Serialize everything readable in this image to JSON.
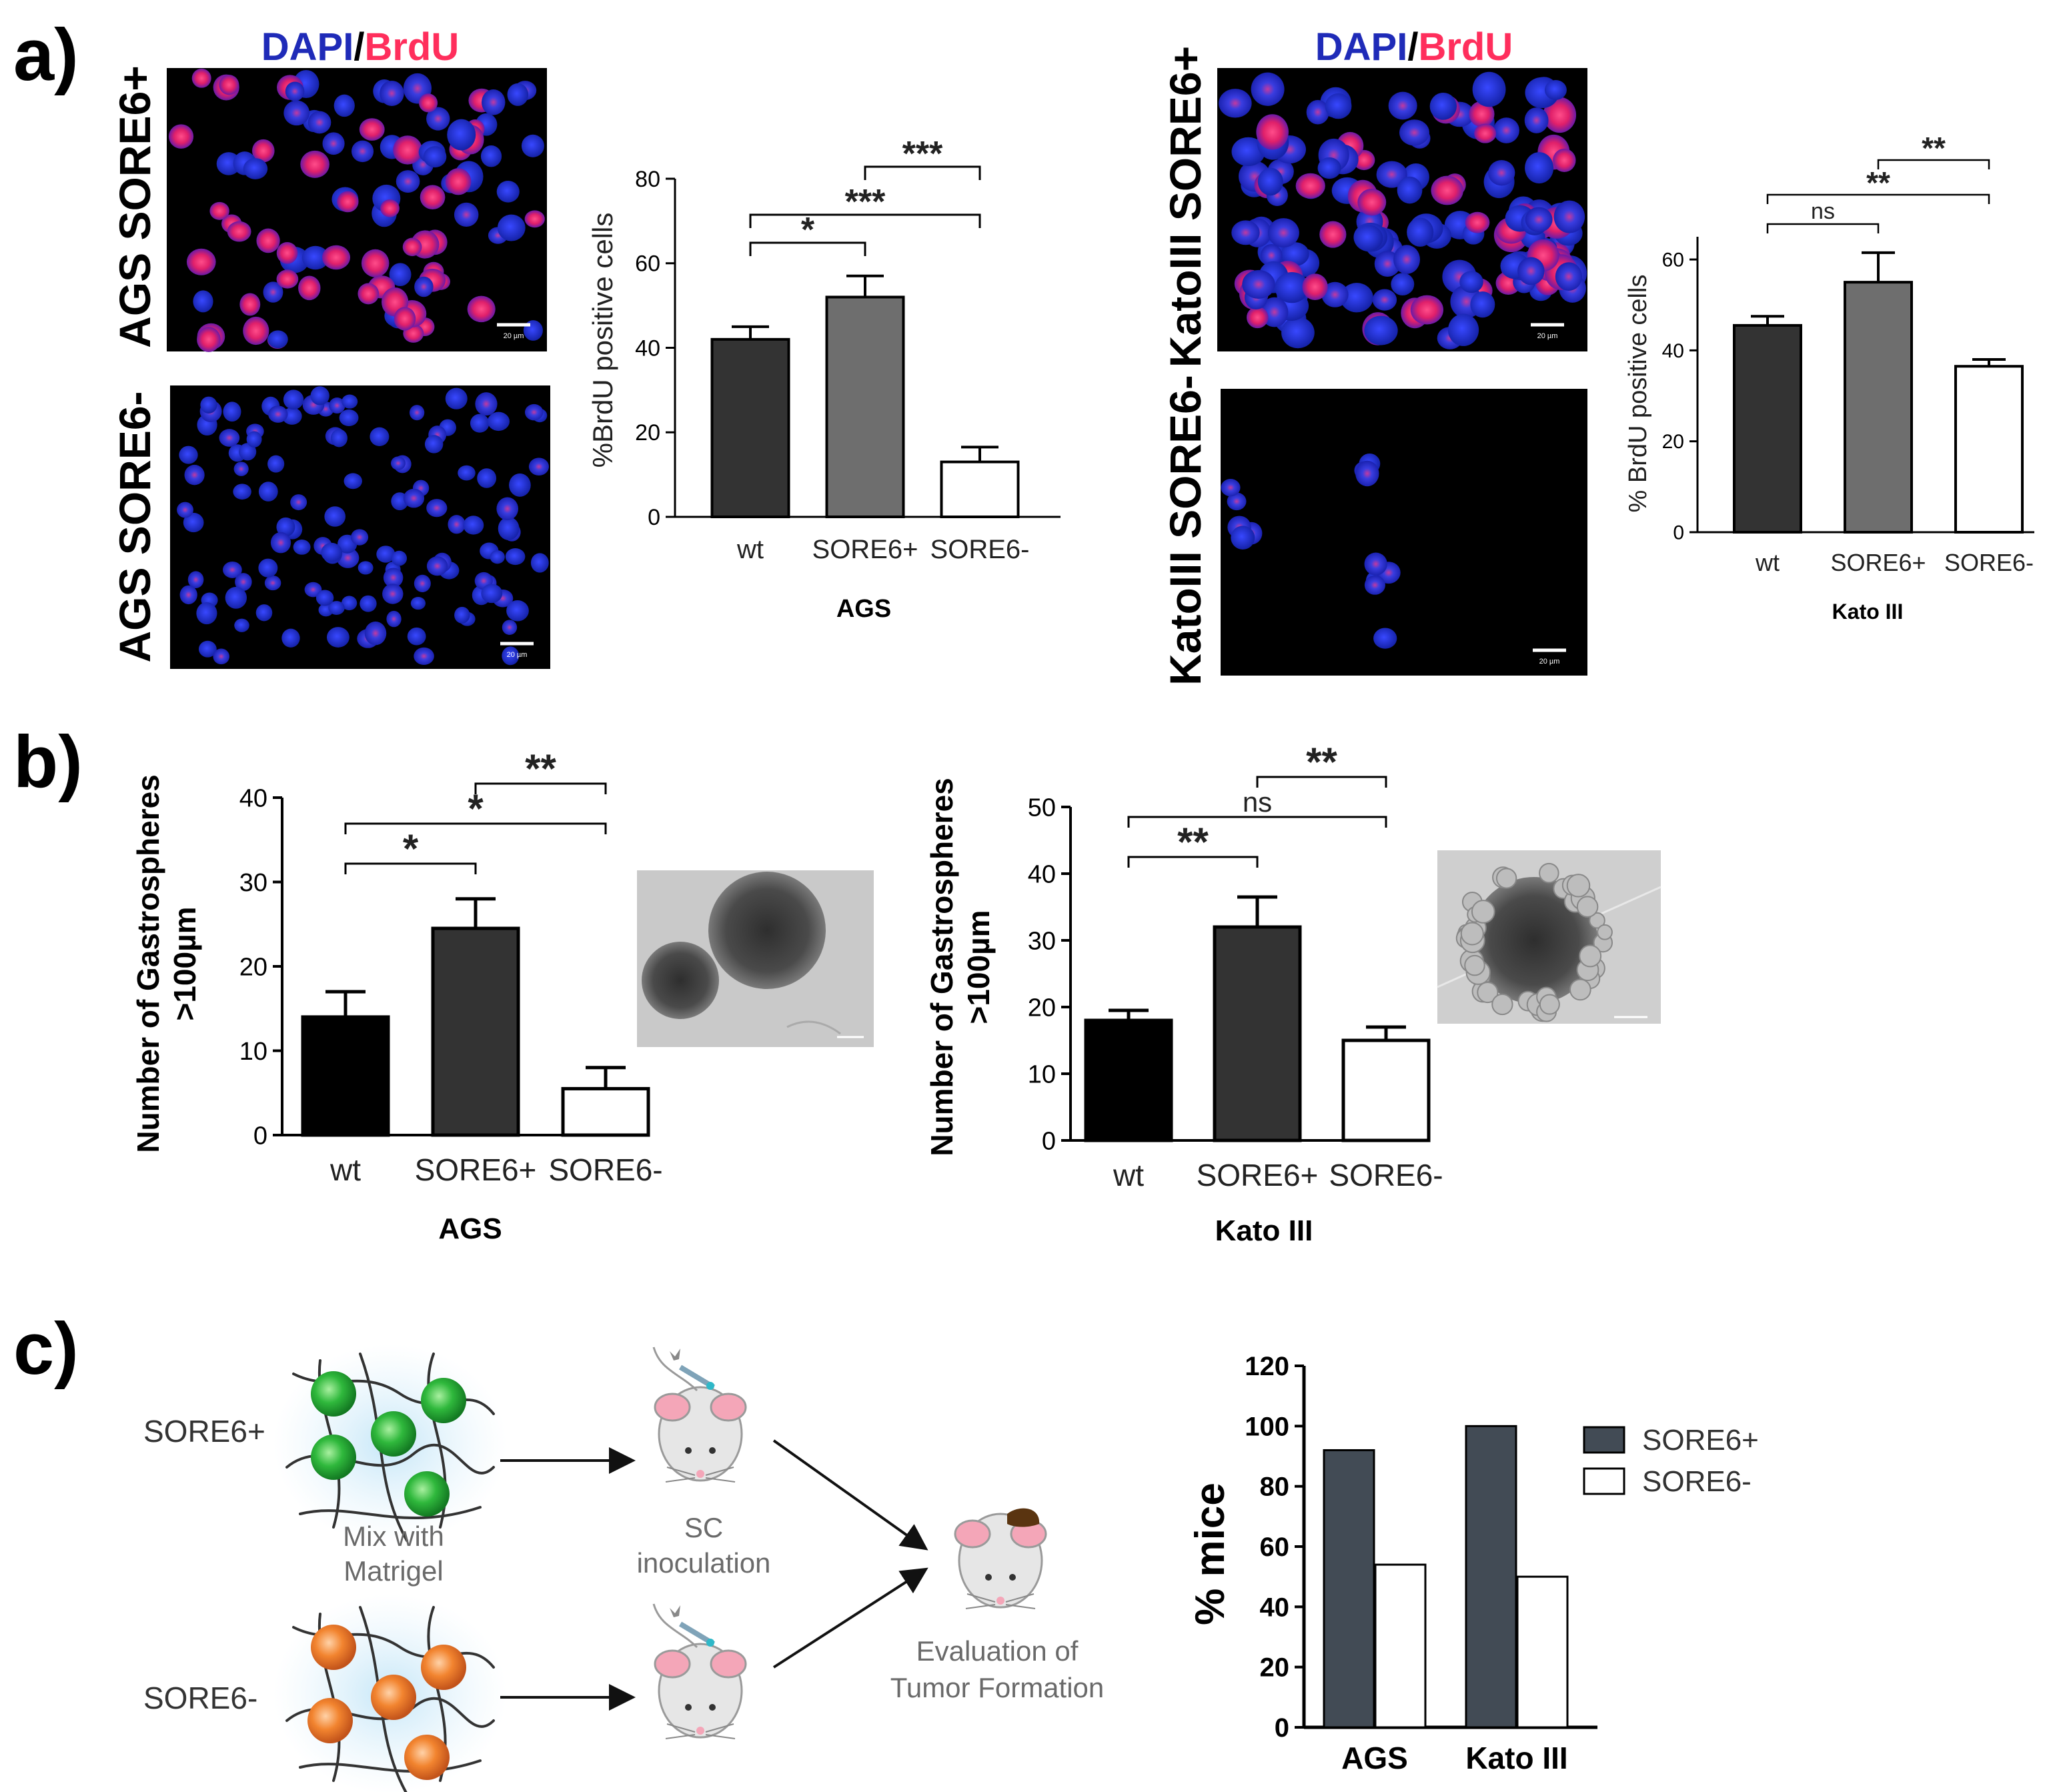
{
  "panels": {
    "a": {
      "letter": "a)",
      "stain_dapi": "DAPI",
      "stain_sep": "/",
      "stain_brdu": "BrdU",
      "images": {
        "ags_pos": "AGS SORE6+",
        "ags_neg": "AGS SORE6-",
        "kato_pos": "KatoIII SORE6+",
        "kato_neg": "KatoIII SORE6-"
      },
      "scale_bar_label": "20 µm"
    },
    "b": {
      "letter": "b)"
    },
    "c": {
      "letter": "c)",
      "labels": {
        "sore6_pos": "SORE6+",
        "sore6_neg": "SORE6-",
        "mix_line1": "Mix with",
        "mix_line2": "Matrigel",
        "sc_line1": "SC",
        "sc_line2": "inoculation",
        "eval_line1": "Evaluation of",
        "eval_line2": "Tumor Formation"
      }
    }
  },
  "colors": {
    "dapi_blue": "#1f2bb8",
    "brdu_red": "#ff2e5c",
    "bar_black": "#000000",
    "bar_darkgray": "#333333",
    "bar_gray": "#6e6e6e",
    "bar_slate": "#424b55",
    "cell_green": "#2fb83c",
    "cell_orange": "#f2842f"
  },
  "chart_data": [
    {
      "id": "a_ags",
      "type": "bar",
      "categories": [
        "wt",
        "SORE6+",
        "SORE6-"
      ],
      "values": [
        42,
        52,
        13
      ],
      "errors": [
        3,
        5,
        3.5
      ],
      "xlabel": "AGS",
      "ylabel": "%BrdU positive cells",
      "ylim": [
        0,
        80
      ],
      "yticks": [
        0,
        20,
        40,
        60,
        80
      ],
      "significance": [
        {
          "from": 0,
          "to": 1,
          "label": "*"
        },
        {
          "from": 0,
          "to": 2,
          "label": "***"
        },
        {
          "from": 1,
          "to": 2,
          "label": "***"
        }
      ]
    },
    {
      "id": "a_kato",
      "type": "bar",
      "categories": [
        "wt",
        "SORE6+",
        "SORE6-"
      ],
      "values": [
        45.5,
        55,
        36.5
      ],
      "errors": [
        2,
        6.5,
        1.5
      ],
      "xlabel": "Kato III",
      "ylabel": "% BrdU positive cells",
      "ylim": [
        0,
        65
      ],
      "yticks": [
        0,
        20,
        40,
        60
      ],
      "significance": [
        {
          "from": 0,
          "to": 1,
          "label": "ns"
        },
        {
          "from": 0,
          "to": 2,
          "label": "**"
        },
        {
          "from": 1,
          "to": 2,
          "label": "**"
        }
      ]
    },
    {
      "id": "b_ags",
      "type": "bar",
      "categories": [
        "wt",
        "SORE6+",
        "SORE6-"
      ],
      "values": [
        14,
        24.5,
        5.5
      ],
      "errors": [
        3,
        3.5,
        2.5
      ],
      "xlabel": "AGS",
      "ylabel": "Number of Gastrospheres",
      "ylabel2": ">100µm",
      "ylim": [
        0,
        40
      ],
      "yticks": [
        0,
        10,
        20,
        30,
        40
      ],
      "significance": [
        {
          "from": 0,
          "to": 1,
          "label": "*"
        },
        {
          "from": 0,
          "to": 2,
          "label": "*"
        },
        {
          "from": 1,
          "to": 2,
          "label": "**"
        }
      ]
    },
    {
      "id": "b_kato",
      "type": "bar",
      "categories": [
        "wt",
        "SORE6+",
        "SORE6-"
      ],
      "values": [
        18,
        32,
        15
      ],
      "errors": [
        1.5,
        4.5,
        2
      ],
      "xlabel": "Kato III",
      "ylabel": "Number of Gastrospheres",
      "ylabel2": ">100µm",
      "ylim": [
        0,
        50
      ],
      "yticks": [
        0,
        10,
        20,
        30,
        40,
        50
      ],
      "significance": [
        {
          "from": 0,
          "to": 1,
          "label": "**"
        },
        {
          "from": 0,
          "to": 2,
          "label": "ns"
        },
        {
          "from": 1,
          "to": 2,
          "label": "**"
        }
      ]
    },
    {
      "id": "c_mice",
      "type": "bar",
      "categories": [
        "AGS",
        "Kato III"
      ],
      "series": [
        {
          "name": "SORE6+",
          "values": [
            92,
            100
          ]
        },
        {
          "name": "SORE6-",
          "values": [
            54,
            50
          ]
        }
      ],
      "ylabel": "% mice",
      "ylim": [
        0,
        120
      ],
      "yticks": [
        0,
        20,
        40,
        60,
        80,
        100,
        120
      ],
      "legend": "right"
    }
  ]
}
